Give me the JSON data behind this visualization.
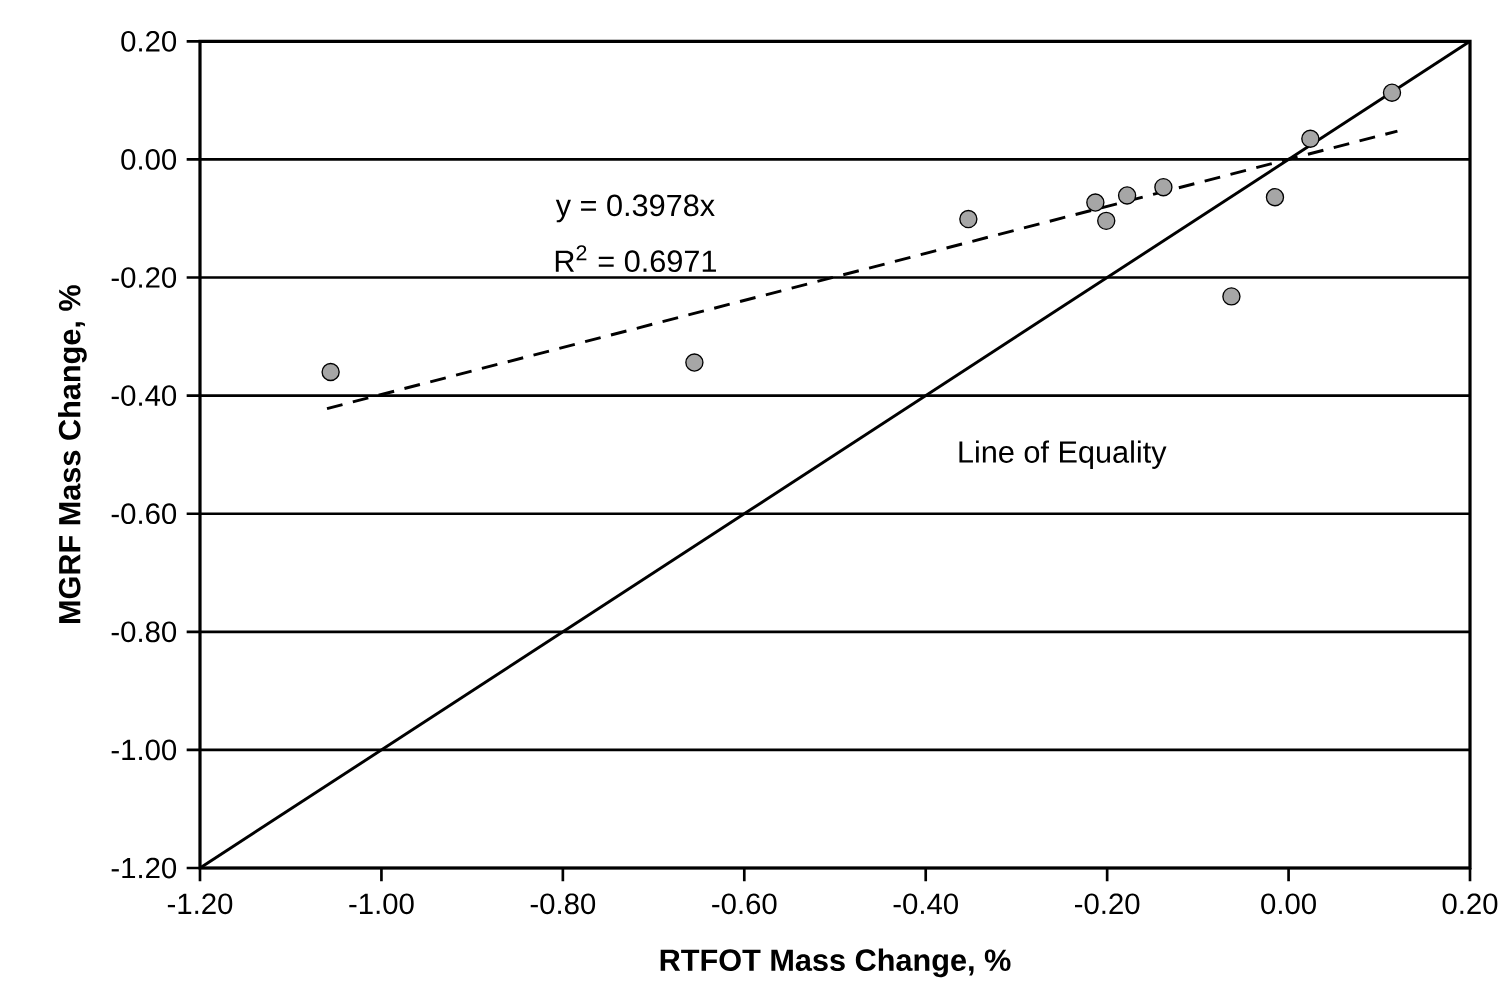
{
  "chart_data": {
    "type": "scatter",
    "xlabel": "RTFOT Mass Change, %",
    "ylabel": "MGRF Mass Change, %",
    "xlim": [
      -1.2,
      0.2
    ],
    "ylim": [
      -1.2,
      0.2
    ],
    "xticks": [
      {
        "value": -1.2,
        "label": "-1.20"
      },
      {
        "value": -1.0,
        "label": "-1.00"
      },
      {
        "value": -0.8,
        "label": "-0.80"
      },
      {
        "value": -0.6,
        "label": "-0.60"
      },
      {
        "value": -0.4,
        "label": "-0.40"
      },
      {
        "value": -0.2,
        "label": "-0.20"
      },
      {
        "value": 0.0,
        "label": "0.00"
      },
      {
        "value": 0.2,
        "label": "0.20"
      }
    ],
    "yticks": [
      {
        "value": -1.2,
        "label": "-1.20"
      },
      {
        "value": -1.0,
        "label": "-1.00"
      },
      {
        "value": -0.8,
        "label": "-0.80"
      },
      {
        "value": -0.6,
        "label": "-0.60"
      },
      {
        "value": -0.4,
        "label": "-0.40"
      },
      {
        "value": -0.2,
        "label": "-0.20"
      },
      {
        "value": 0.0,
        "label": "0.00"
      },
      {
        "value": 0.2,
        "label": "0.20"
      }
    ],
    "grid": "y",
    "series": [
      {
        "type": "scatter",
        "color": "#a6a6a6",
        "marker": "circle",
        "x": [
          -1.056,
          -0.655,
          -0.353,
          -0.213,
          -0.201,
          -0.178,
          -0.138,
          -0.063,
          -0.015,
          0.024,
          0.114
        ],
        "values": [
          -0.36,
          -0.344,
          -0.101,
          -0.073,
          -0.104,
          -0.061,
          -0.047,
          -0.232,
          -0.064,
          0.035,
          0.113
        ]
      },
      {
        "type": "line",
        "color": "#000000",
        "marker": "none",
        "line_style": "dashed",
        "x": [
          -1.06,
          0.12
        ],
        "values": [
          -0.422,
          0.048
        ]
      },
      {
        "type": "line",
        "name": "Line of Equality",
        "color": "#000000",
        "marker": "none",
        "line_style": "solid",
        "x": [
          -1.2,
          0.2
        ],
        "values": [
          -1.2,
          0.2
        ]
      }
    ],
    "annotations": [
      "y = 0.3978x",
      "R$^{2}$ = 0.6971"
    ]
  }
}
